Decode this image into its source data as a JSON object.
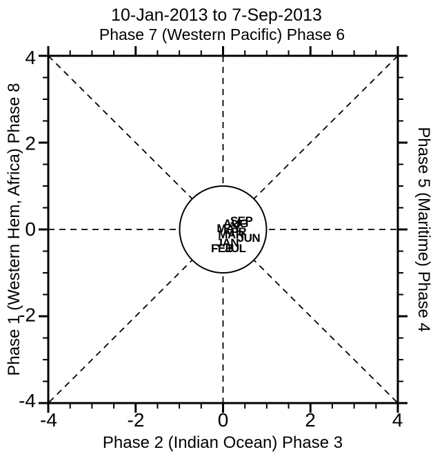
{
  "chart_data": {
    "type": "scatter",
    "title": "10-Jan-2013 to 7-Sep-2013",
    "axis_labels": {
      "top": "Phase 7 (Western Pacific) Phase 6",
      "bottom": "Phase 2 (Indian Ocean) Phase 3",
      "left": "Phase 1 (Western Hem, Africa) Phase 8",
      "right": "Phase 5 (Maritime) Phase 4"
    },
    "xlim": [
      -4,
      4
    ],
    "ylim": [
      -4,
      4
    ],
    "x_tick_labels": [
      "-4",
      "-2",
      "0",
      "2",
      "4"
    ],
    "y_tick_labels": [
      "4",
      "2",
      "0",
      "-2",
      "-4"
    ],
    "major_tick_step": 2,
    "minor_tick_step": 0.5,
    "unit_circle_radius": 1,
    "reference_lines": "dashed horizontal, vertical and corner diagonals meeting at unit circle",
    "line_color": "#000000",
    "month_labels": [
      {
        "label": "SEP",
        "color": "#00CCEE",
        "x": 0.42,
        "y": 0.21
      },
      {
        "label": "AUG",
        "color": "#00CCEE",
        "x": 0.29,
        "y": 0.14
      },
      {
        "label": "JUL",
        "color": "#0000FF",
        "x": 0.28,
        "y": -0.43
      },
      {
        "label": "JUN",
        "color": "#AA0000",
        "x": 0.59,
        "y": -0.19
      },
      {
        "label": "MAY",
        "color": "#FF00FF",
        "x": 0.13,
        "y": 0.03
      },
      {
        "label": "APR",
        "color": "#FF00FF",
        "x": 0.26,
        "y": -0.05
      },
      {
        "label": "MAR",
        "color": "#00AA00",
        "x": 0.18,
        "y": -0.11
      },
      {
        "label": "FEB",
        "color": "#0000FF",
        "x": -0.02,
        "y": -0.43
      },
      {
        "label": "JAN",
        "color": "#FF0000",
        "x": 0.1,
        "y": -0.3
      }
    ],
    "month_labels_draw_order": "back-to-front (later months behind earlier months)"
  }
}
